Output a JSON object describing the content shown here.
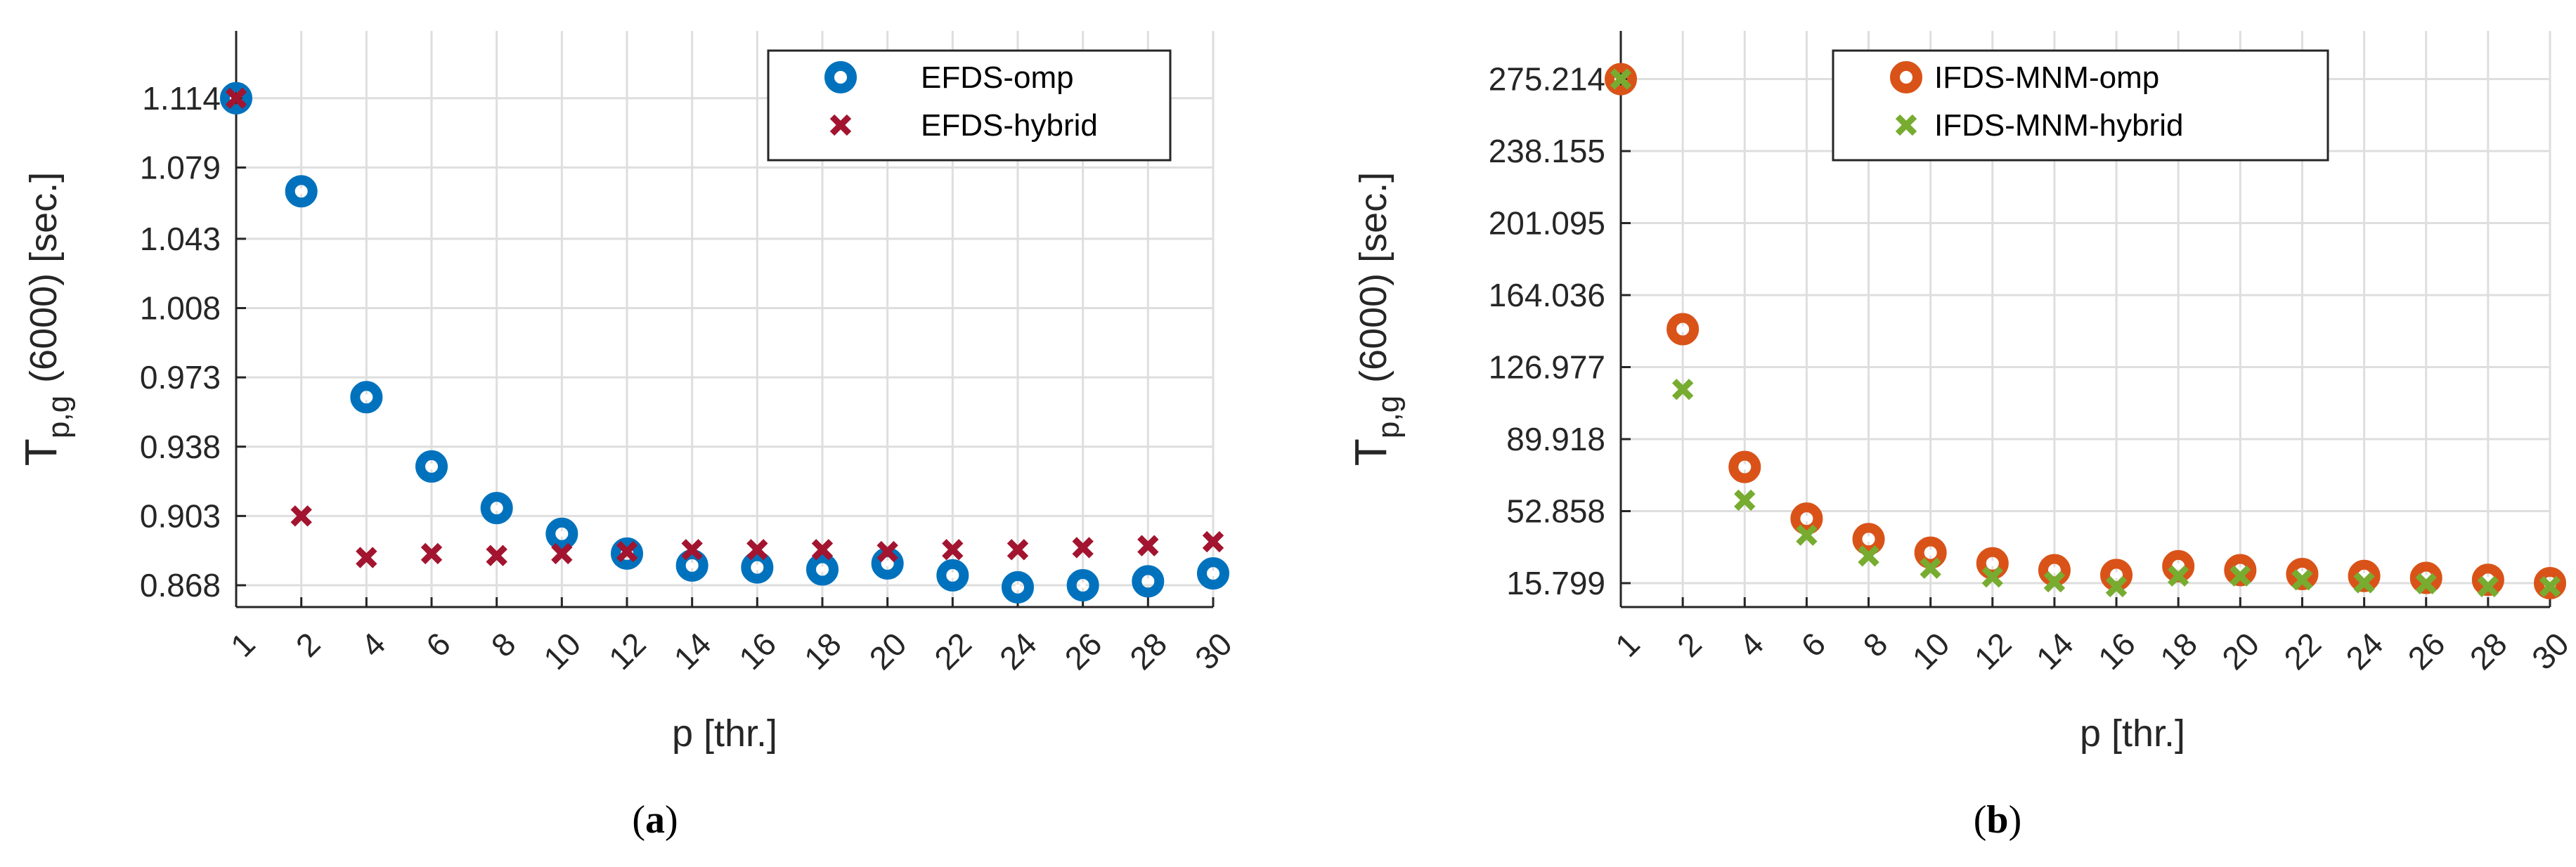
{
  "captions": [
    {
      "open": "(",
      "letter": "a",
      "close": ")"
    },
    {
      "open": "(",
      "letter": "b",
      "close": ")"
    }
  ],
  "colors": {
    "efds_omp": "#0072BD",
    "efds_hybrid": "#A2142F",
    "ifds_omp": "#D95319",
    "ifds_hybrid": "#77AC30"
  },
  "chart_data": [
    {
      "type": "scatter",
      "xlabel": "p [thr.]",
      "ylabel_main": "T",
      "ylabel_sub": "p,g",
      "ylabel_rest": "(6000)  [sec.]",
      "x_ticks": [
        "1",
        "2",
        "4",
        "6",
        "8",
        "10",
        "12",
        "14",
        "16",
        "18",
        "20",
        "22",
        "24",
        "26",
        "28",
        "30"
      ],
      "y_ticks": [
        "0.868",
        "0.903",
        "0.938",
        "0.973",
        "1.008",
        "1.043",
        "1.079",
        "1.114"
      ],
      "y_tick_values": [
        0.868,
        0.903,
        0.938,
        0.973,
        1.008,
        1.043,
        1.079,
        1.114
      ],
      "ylim": [
        0.857,
        1.148
      ],
      "grid": true,
      "legend": "top-right",
      "x": [
        1,
        2,
        4,
        6,
        8,
        10,
        12,
        14,
        16,
        18,
        20,
        22,
        24,
        26,
        28,
        30
      ],
      "series": [
        {
          "name": "EFDS-omp",
          "marker": "circle",
          "values": [
            1.114,
            1.067,
            0.963,
            0.928,
            0.907,
            0.894,
            0.884,
            0.878,
            0.877,
            0.876,
            0.879,
            0.873,
            0.867,
            0.868,
            0.87,
            0.874
          ]
        },
        {
          "name": "EFDS-hybrid",
          "marker": "x",
          "values": [
            1.114,
            0.903,
            0.882,
            0.884,
            0.883,
            0.884,
            0.885,
            0.886,
            0.886,
            0.886,
            0.885,
            0.886,
            0.886,
            0.887,
            0.888,
            0.89
          ]
        }
      ]
    },
    {
      "type": "scatter",
      "xlabel": "p [thr.]",
      "ylabel_main": "T",
      "ylabel_sub": "p,g",
      "ylabel_rest": "(6000)  [sec.]",
      "x_ticks": [
        "1",
        "2",
        "4",
        "6",
        "8",
        "10",
        "12",
        "14",
        "16",
        "18",
        "20",
        "22",
        "24",
        "26",
        "28",
        "30"
      ],
      "y_ticks": [
        "15.799",
        "52.858",
        "89.918",
        "126.977",
        "164.036",
        "201.095",
        "238.155",
        "275.214"
      ],
      "y_tick_values": [
        15.799,
        52.858,
        89.918,
        126.977,
        164.036,
        201.095,
        238.155,
        275.214
      ],
      "ylim": [
        3.5,
        300
      ],
      "grid": true,
      "legend": "top-right",
      "x": [
        1,
        2,
        4,
        6,
        8,
        10,
        12,
        14,
        16,
        18,
        20,
        22,
        24,
        26,
        28,
        30
      ],
      "series": [
        {
          "name": "IFDS-MNM-omp",
          "marker": "circle",
          "values": [
            275.2,
            146.5,
            75.6,
            49.0,
            38.5,
            31.5,
            26.0,
            22.5,
            20.0,
            24.5,
            22.5,
            20.5,
            19.5,
            18.5,
            17.5,
            15.8
          ]
        },
        {
          "name": "IFDS-MNM-hybrid",
          "marker": "x",
          "values": [
            275.2,
            115.5,
            58.5,
            40.5,
            29.8,
            23.5,
            19.0,
            16.5,
            14.0,
            19.5,
            19.5,
            17.5,
            16.0,
            15.5,
            14.0,
            14.0
          ]
        }
      ]
    }
  ]
}
